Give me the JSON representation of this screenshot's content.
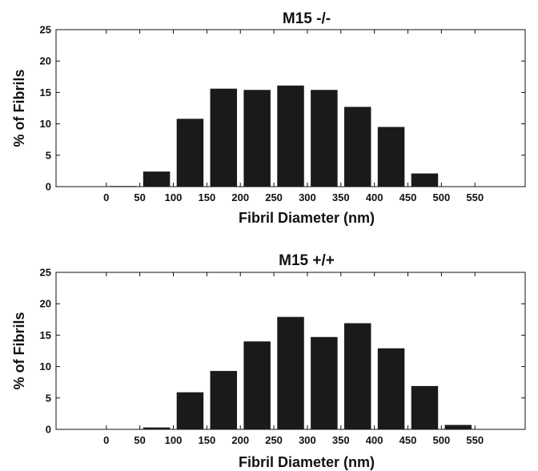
{
  "chart_data": [
    {
      "type": "bar",
      "title": "M15 -/-",
      "xlabel": "Fibril Diameter (nm)",
      "ylabel": "% of Fibrils",
      "ylim": [
        0,
        25
      ],
      "yticks": [
        0,
        5,
        10,
        15,
        20,
        25
      ],
      "xlim": [
        -75,
        625
      ],
      "xticks": [
        0,
        50,
        100,
        150,
        200,
        250,
        300,
        350,
        400,
        450,
        500,
        550
      ],
      "bar_width": 40,
      "x": [
        25,
        75,
        125,
        175,
        225,
        275,
        325,
        375,
        425,
        475,
        525
      ],
      "values": [
        0.1,
        2.4,
        10.8,
        15.6,
        15.4,
        16.1,
        15.4,
        12.7,
        9.5,
        2.1,
        0
      ],
      "bar_color": "#1a1a1a"
    },
    {
      "type": "bar",
      "title": "M15 +/+",
      "xlabel": "Fibril Diameter (nm)",
      "ylabel": "% of Fibrils",
      "ylim": [
        0,
        25
      ],
      "yticks": [
        0,
        5,
        10,
        15,
        20,
        25
      ],
      "xlim": [
        -75,
        625
      ],
      "xticks": [
        0,
        50,
        100,
        150,
        200,
        250,
        300,
        350,
        400,
        450,
        500,
        550
      ],
      "bar_width": 40,
      "x": [
        25,
        75,
        125,
        175,
        225,
        275,
        325,
        375,
        425,
        475,
        525
      ],
      "values": [
        0,
        0.3,
        5.9,
        9.3,
        14.0,
        17.9,
        14.7,
        16.9,
        12.9,
        6.9,
        0.7
      ],
      "bar_color": "#1a1a1a"
    }
  ]
}
